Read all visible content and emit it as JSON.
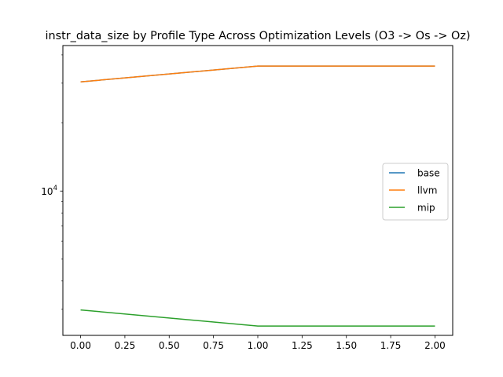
{
  "chart_data": {
    "type": "line",
    "title": "instr_data_size by Profile Type Across Optimization Levels (O3 -> Os -> Oz)",
    "xlabel": "",
    "ylabel": "",
    "x": [
      0,
      1,
      2
    ],
    "x_ticks": [
      0.0,
      0.25,
      0.5,
      0.75,
      1.0,
      1.25,
      1.5,
      1.75,
      2.0
    ],
    "x_tick_labels": [
      "0.00",
      "0.25",
      "0.50",
      "0.75",
      "1.00",
      "1.25",
      "1.50",
      "1.75",
      "2.00"
    ],
    "xlim": [
      -0.1,
      2.1
    ],
    "y_scale": "log",
    "ylim": [
      2300,
      44000
    ],
    "y_tick_base": "10",
    "y_tick_exponent": "4",
    "grid": false,
    "legend_position": "center-right",
    "series": [
      {
        "name": "base",
        "color": "#1f77b4",
        "values": [
          30400,
          35700,
          35700
        ]
      },
      {
        "name": "llvm",
        "color": "#ff7f0e",
        "values": [
          30400,
          35700,
          35700
        ]
      },
      {
        "name": "mip",
        "color": "#2ca02c",
        "values": [
          2980,
          2530,
          2530
        ]
      }
    ]
  }
}
